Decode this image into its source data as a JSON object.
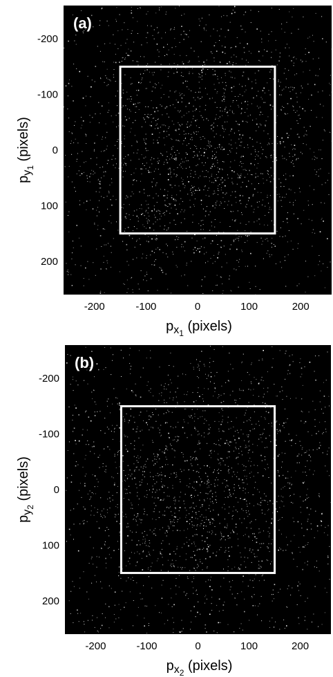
{
  "chart_data": [
    {
      "type": "heatmap",
      "panel_label": "(a)",
      "xlabel": {
        "main": "p",
        "sub": "x",
        "subsub": "1",
        "unit": "(pixels)"
      },
      "ylabel": {
        "main": "p",
        "sub": "y",
        "subsub": "1",
        "unit": "(pixels)"
      },
      "xlim": [
        -260,
        260
      ],
      "ylim": [
        -260,
        260
      ],
      "y_inverted": true,
      "xticks": [
        -200,
        -100,
        0,
        100,
        200
      ],
      "yticks": [
        -200,
        -100,
        0,
        100,
        200
      ],
      "xtick_labels": [
        "-200",
        "-100",
        "0",
        "100",
        "200"
      ],
      "ytick_labels": [
        "-200",
        "-100",
        "0",
        "100",
        "200"
      ],
      "grid": false,
      "background_color": "#000000",
      "point_color": "#ffffff",
      "region_box": {
        "x0": -150,
        "x1": 150,
        "y0": -150,
        "y1": 150
      }
    },
    {
      "type": "heatmap",
      "panel_label": "(b)",
      "xlabel": {
        "main": "p",
        "sub": "x",
        "subsub": "2",
        "unit": "(pixels)"
      },
      "ylabel": {
        "main": "p",
        "sub": "y",
        "subsub": "2",
        "unit": "(pixels)"
      },
      "xlim": [
        -260,
        260
      ],
      "ylim": [
        -260,
        260
      ],
      "y_inverted": true,
      "xticks": [
        -200,
        -100,
        0,
        100,
        200
      ],
      "yticks": [
        -200,
        -100,
        0,
        100,
        200
      ],
      "xtick_labels": [
        "-200",
        "-100",
        "0",
        "100",
        "200"
      ],
      "ytick_labels": [
        "-200",
        "-100",
        "0",
        "100",
        "200"
      ],
      "grid": false,
      "background_color": "#000000",
      "point_color": "#ffffff",
      "region_box": {
        "x0": -150,
        "x1": 150,
        "y0": -150,
        "y1": 150
      }
    }
  ]
}
